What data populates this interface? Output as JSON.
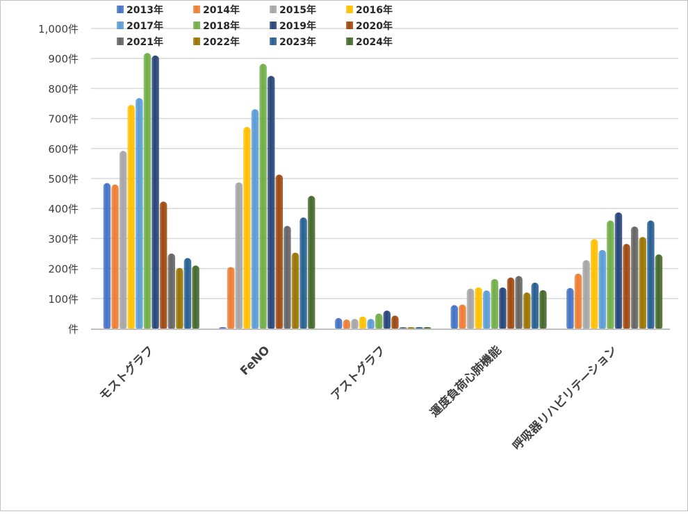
{
  "chart_data": {
    "type": "bar",
    "title": "",
    "xlabel": "",
    "ylabel": "",
    "ylim": [
      0,
      1000
    ],
    "grid": true,
    "legend_position": "top",
    "y_ticks": [
      0,
      100,
      200,
      300,
      400,
      500,
      600,
      700,
      800,
      900,
      1000
    ],
    "y_tick_labels": [
      "件",
      "100件",
      "200件",
      "300件",
      "400件",
      "500件",
      "600件",
      "700件",
      "800件",
      "900件",
      "1,000件"
    ],
    "categories": [
      "モストグラフ",
      "FeNO",
      "アストグラフ",
      "運度負荷心肺機能",
      "呼吸器リハビリテーション"
    ],
    "series": [
      {
        "name": "2013年",
        "color": "#4472C4",
        "values": [
          485,
          0,
          35,
          78,
          135
        ]
      },
      {
        "name": "2014年",
        "color": "#ED7D31",
        "values": [
          480,
          205,
          30,
          80,
          183
        ]
      },
      {
        "name": "2015年",
        "color": "#A5A5A5",
        "values": [
          592,
          487,
          32,
          133,
          228
        ]
      },
      {
        "name": "2016年",
        "color": "#FFC000",
        "values": [
          745,
          672,
          40,
          137,
          298
        ]
      },
      {
        "name": "2017年",
        "color": "#5B9BD5",
        "values": [
          768,
          731,
          32,
          127,
          262
        ]
      },
      {
        "name": "2018年",
        "color": "#70AD47",
        "values": [
          918,
          882,
          50,
          165,
          360
        ]
      },
      {
        "name": "2019年",
        "color": "#264478",
        "values": [
          910,
          842,
          60,
          137,
          387
        ]
      },
      {
        "name": "2020年",
        "color": "#9E480E",
        "values": [
          423,
          513,
          43,
          170,
          282
        ]
      },
      {
        "name": "2021年",
        "color": "#636363",
        "values": [
          250,
          342,
          2,
          175,
          340
        ]
      },
      {
        "name": "2022年",
        "color": "#997300",
        "values": [
          202,
          253,
          3,
          120,
          305
        ]
      },
      {
        "name": "2023年",
        "color": "#255E91",
        "values": [
          235,
          370,
          5,
          153,
          360
        ]
      },
      {
        "name": "2024年",
        "color": "#43682B",
        "values": [
          210,
          442,
          5,
          128,
          247
        ]
      }
    ]
  }
}
